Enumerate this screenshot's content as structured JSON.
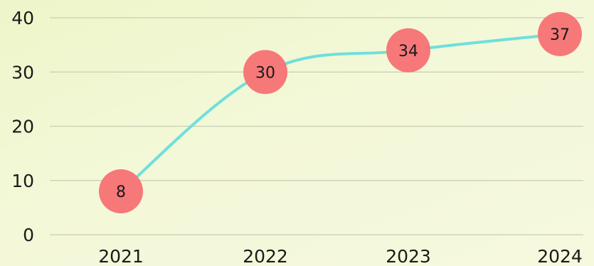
{
  "chart_data": {
    "type": "line",
    "title": "",
    "xlabel": "",
    "ylabel": "",
    "categories": [
      "2021",
      "2022",
      "2023",
      "2024"
    ],
    "series": [
      {
        "values": [
          8,
          30,
          34,
          37
        ]
      }
    ],
    "data_labels": [
      "8",
      "30",
      "34",
      "37"
    ],
    "ylim": [
      0,
      40
    ],
    "yticks": [
      0,
      10,
      20,
      30,
      40
    ],
    "ytick_labels": [
      "0",
      "10",
      "20",
      "30",
      "40"
    ],
    "grid": true,
    "line_shape": "smooth",
    "colors": {
      "line": "#6fdfdc",
      "point": "#f77878",
      "grid": "#c9cdb0"
    }
  }
}
